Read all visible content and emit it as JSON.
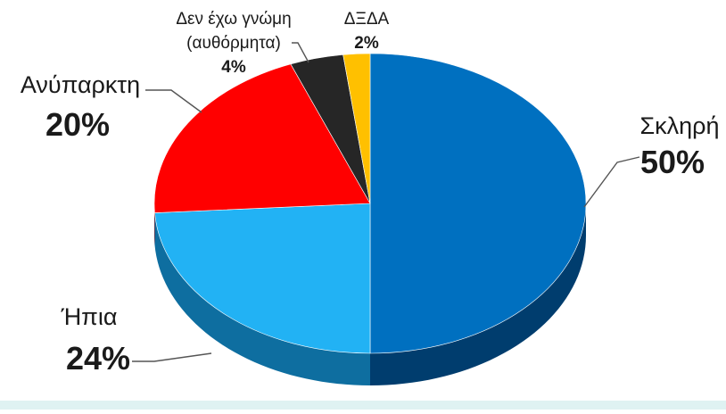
{
  "chart_data": {
    "type": "pie",
    "style": "3d",
    "start": "12 o'clock",
    "direction": "clockwise",
    "slices": [
      {
        "label": "Σκληρή",
        "label_lines": [
          "Σκληρή"
        ],
        "value": 50,
        "value_text": "50%",
        "color": "#0070c0",
        "side_color": "#003d6e",
        "emphasis": "large"
      },
      {
        "label": "Ήπια",
        "label_lines": [
          "Ήπια"
        ],
        "value": 24,
        "value_text": "24%",
        "color": "#22b2f4",
        "side_color": "#0e6ea0",
        "emphasis": "large"
      },
      {
        "label": "Ανύπαρκτη",
        "label_lines": [
          "Ανύπαρκτη"
        ],
        "value": 20,
        "value_text": "20%",
        "color": "#ff0000",
        "side_color": "#9a0000",
        "emphasis": "large"
      },
      {
        "label": "Δεν έχω γνώμη (αυθόρμητα)",
        "label_lines": [
          "Δεν έχω γνώμη",
          "(αυθόρμητα)"
        ],
        "value": 4,
        "value_text": "4%",
        "color": "#262626",
        "side_color": "#0c0c0c",
        "emphasis": "small"
      },
      {
        "label": "ΔΞΔΑ",
        "label_lines": [
          "ΔΞΔΑ"
        ],
        "value": 2,
        "value_text": "2%",
        "color": "#ffc000",
        "side_color": "#a57b00",
        "emphasis": "small"
      }
    ],
    "legend": "none",
    "labels": "outside with leader lines"
  }
}
